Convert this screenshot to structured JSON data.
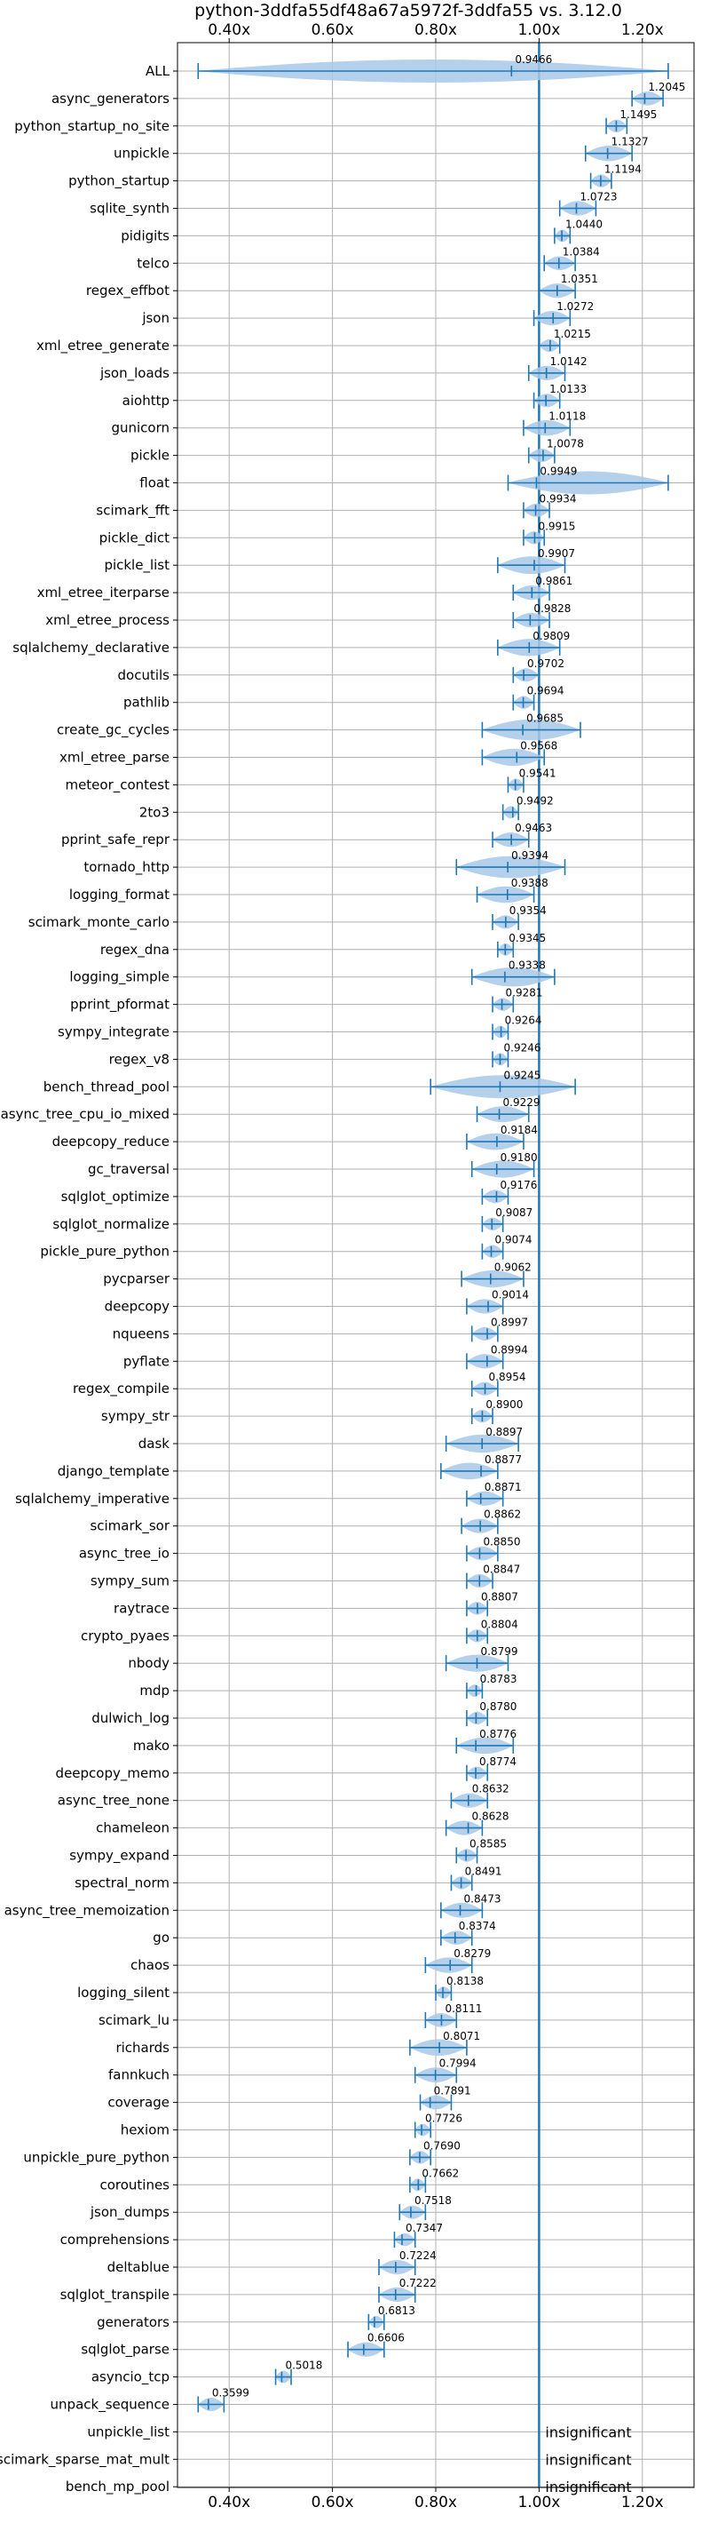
{
  "chart_data": {
    "type": "violin",
    "title": "python-3ddfa55df48a67a5972f-3ddfa55 vs. 3.12.0",
    "xlabel": "",
    "ylabel": "",
    "xlim": [
      0.3,
      1.3
    ],
    "x_ticks": [
      0.4,
      0.6,
      0.8,
      1.0,
      1.2
    ],
    "x_tick_labels": [
      "0.40x",
      "0.60x",
      "0.80x",
      "1.00x",
      "1.20x"
    ],
    "reference_line": 1.0,
    "grid": true,
    "colors": {
      "violin": "#a8c8e8",
      "line": "#1f77b4"
    },
    "insignificant_text": "insignificant",
    "benchmarks": [
      {
        "name": "ALL",
        "value": 0.9466,
        "label": "0.9466",
        "min": 0.34,
        "max": 1.25
      },
      {
        "name": "async_generators",
        "value": 1.2045,
        "label": "1.2045",
        "min": 1.18,
        "max": 1.24
      },
      {
        "name": "python_startup_no_site",
        "value": 1.1495,
        "label": "1.1495",
        "min": 1.13,
        "max": 1.17
      },
      {
        "name": "unpickle",
        "value": 1.1327,
        "label": "1.1327",
        "min": 1.09,
        "max": 1.18
      },
      {
        "name": "python_startup",
        "value": 1.1194,
        "label": "1.1194",
        "min": 1.1,
        "max": 1.14
      },
      {
        "name": "sqlite_synth",
        "value": 1.0723,
        "label": "1.0723",
        "min": 1.04,
        "max": 1.11
      },
      {
        "name": "pidigits",
        "value": 1.044,
        "label": "1.0440",
        "min": 1.03,
        "max": 1.06
      },
      {
        "name": "telco",
        "value": 1.0384,
        "label": "1.0384",
        "min": 1.01,
        "max": 1.07
      },
      {
        "name": "regex_effbot",
        "value": 1.0351,
        "label": "1.0351",
        "min": 1.0,
        "max": 1.07
      },
      {
        "name": "json",
        "value": 1.0272,
        "label": "1.0272",
        "min": 0.99,
        "max": 1.06
      },
      {
        "name": "xml_etree_generate",
        "value": 1.0215,
        "label": "1.0215",
        "min": 1.0,
        "max": 1.04
      },
      {
        "name": "json_loads",
        "value": 1.0142,
        "label": "1.0142",
        "min": 0.98,
        "max": 1.05
      },
      {
        "name": "aiohttp",
        "value": 1.0133,
        "label": "1.0133",
        "min": 0.99,
        "max": 1.04
      },
      {
        "name": "gunicorn",
        "value": 1.0118,
        "label": "1.0118",
        "min": 0.97,
        "max": 1.06
      },
      {
        "name": "pickle",
        "value": 1.0078,
        "label": "1.0078",
        "min": 0.98,
        "max": 1.03
      },
      {
        "name": "float",
        "value": 0.9949,
        "label": "0.9949",
        "min": 0.94,
        "max": 1.25
      },
      {
        "name": "scimark_fft",
        "value": 0.9934,
        "label": "0.9934",
        "min": 0.97,
        "max": 1.02
      },
      {
        "name": "pickle_dict",
        "value": 0.9915,
        "label": "0.9915",
        "min": 0.97,
        "max": 1.01
      },
      {
        "name": "pickle_list",
        "value": 0.9907,
        "label": "0.9907",
        "min": 0.92,
        "max": 1.05
      },
      {
        "name": "xml_etree_iterparse",
        "value": 0.9861,
        "label": "0.9861",
        "min": 0.95,
        "max": 1.02
      },
      {
        "name": "xml_etree_process",
        "value": 0.9828,
        "label": "0.9828",
        "min": 0.95,
        "max": 1.02
      },
      {
        "name": "sqlalchemy_declarative",
        "value": 0.9809,
        "label": "0.9809",
        "min": 0.92,
        "max": 1.04
      },
      {
        "name": "docutils",
        "value": 0.9702,
        "label": "0.9702",
        "min": 0.95,
        "max": 1.0
      },
      {
        "name": "pathlib",
        "value": 0.9694,
        "label": "0.9694",
        "min": 0.95,
        "max": 0.99
      },
      {
        "name": "create_gc_cycles",
        "value": 0.9685,
        "label": "0.9685",
        "min": 0.89,
        "max": 1.08
      },
      {
        "name": "xml_etree_parse",
        "value": 0.9568,
        "label": "0.9568",
        "min": 0.89,
        "max": 1.01
      },
      {
        "name": "meteor_contest",
        "value": 0.9541,
        "label": "0.9541",
        "min": 0.94,
        "max": 0.97
      },
      {
        "name": "2to3",
        "value": 0.9492,
        "label": "0.9492",
        "min": 0.93,
        "max": 0.96
      },
      {
        "name": "pprint_safe_repr",
        "value": 0.9463,
        "label": "0.9463",
        "min": 0.91,
        "max": 0.98
      },
      {
        "name": "tornado_http",
        "value": 0.9394,
        "label": "0.9394",
        "min": 0.84,
        "max": 1.05
      },
      {
        "name": "logging_format",
        "value": 0.9388,
        "label": "0.9388",
        "min": 0.88,
        "max": 0.99
      },
      {
        "name": "scimark_monte_carlo",
        "value": 0.9354,
        "label": "0.9354",
        "min": 0.91,
        "max": 0.96
      },
      {
        "name": "regex_dna",
        "value": 0.9345,
        "label": "0.9345",
        "min": 0.92,
        "max": 0.95
      },
      {
        "name": "logging_simple",
        "value": 0.9338,
        "label": "0.9338",
        "min": 0.87,
        "max": 1.03
      },
      {
        "name": "pprint_pformat",
        "value": 0.9281,
        "label": "0.9281",
        "min": 0.91,
        "max": 0.95
      },
      {
        "name": "sympy_integrate",
        "value": 0.9264,
        "label": "0.9264",
        "min": 0.91,
        "max": 0.94
      },
      {
        "name": "regex_v8",
        "value": 0.9246,
        "label": "0.9246",
        "min": 0.91,
        "max": 0.94
      },
      {
        "name": "bench_thread_pool",
        "value": 0.9245,
        "label": "0.9245",
        "min": 0.79,
        "max": 1.07
      },
      {
        "name": "async_tree_cpu_io_mixed",
        "value": 0.9229,
        "label": "0.9229",
        "min": 0.88,
        "max": 0.98
      },
      {
        "name": "deepcopy_reduce",
        "value": 0.9184,
        "label": "0.9184",
        "min": 0.86,
        "max": 0.97
      },
      {
        "name": "gc_traversal",
        "value": 0.918,
        "label": "0.9180",
        "min": 0.87,
        "max": 0.99
      },
      {
        "name": "sqlglot_optimize",
        "value": 0.9176,
        "label": "0.9176",
        "min": 0.89,
        "max": 0.94
      },
      {
        "name": "sqlglot_normalize",
        "value": 0.9087,
        "label": "0.9087",
        "min": 0.89,
        "max": 0.93
      },
      {
        "name": "pickle_pure_python",
        "value": 0.9074,
        "label": "0.9074",
        "min": 0.89,
        "max": 0.93
      },
      {
        "name": "pycparser",
        "value": 0.9062,
        "label": "0.9062",
        "min": 0.85,
        "max": 0.97
      },
      {
        "name": "deepcopy",
        "value": 0.9014,
        "label": "0.9014",
        "min": 0.86,
        "max": 0.93
      },
      {
        "name": "nqueens",
        "value": 0.8997,
        "label": "0.8997",
        "min": 0.87,
        "max": 0.92
      },
      {
        "name": "pyflate",
        "value": 0.8994,
        "label": "0.8994",
        "min": 0.86,
        "max": 0.93
      },
      {
        "name": "regex_compile",
        "value": 0.8954,
        "label": "0.8954",
        "min": 0.87,
        "max": 0.92
      },
      {
        "name": "sympy_str",
        "value": 0.89,
        "label": "0.8900",
        "min": 0.87,
        "max": 0.91
      },
      {
        "name": "dask",
        "value": 0.8897,
        "label": "0.8897",
        "min": 0.82,
        "max": 0.96
      },
      {
        "name": "django_template",
        "value": 0.8877,
        "label": "0.8877",
        "min": 0.81,
        "max": 0.92
      },
      {
        "name": "sqlalchemy_imperative",
        "value": 0.8871,
        "label": "0.8871",
        "min": 0.86,
        "max": 0.93
      },
      {
        "name": "scimark_sor",
        "value": 0.8862,
        "label": "0.8862",
        "min": 0.85,
        "max": 0.92
      },
      {
        "name": "async_tree_io",
        "value": 0.885,
        "label": "0.8850",
        "min": 0.86,
        "max": 0.92
      },
      {
        "name": "sympy_sum",
        "value": 0.8847,
        "label": "0.8847",
        "min": 0.86,
        "max": 0.91
      },
      {
        "name": "raytrace",
        "value": 0.8807,
        "label": "0.8807",
        "min": 0.86,
        "max": 0.9
      },
      {
        "name": "crypto_pyaes",
        "value": 0.8804,
        "label": "0.8804",
        "min": 0.86,
        "max": 0.9
      },
      {
        "name": "nbody",
        "value": 0.8799,
        "label": "0.8799",
        "min": 0.82,
        "max": 0.94
      },
      {
        "name": "mdp",
        "value": 0.8783,
        "label": "0.8783",
        "min": 0.86,
        "max": 0.89
      },
      {
        "name": "dulwich_log",
        "value": 0.878,
        "label": "0.8780",
        "min": 0.86,
        "max": 0.9
      },
      {
        "name": "mako",
        "value": 0.8776,
        "label": "0.8776",
        "min": 0.84,
        "max": 0.95
      },
      {
        "name": "deepcopy_memo",
        "value": 0.8774,
        "label": "0.8774",
        "min": 0.86,
        "max": 0.9
      },
      {
        "name": "async_tree_none",
        "value": 0.8632,
        "label": "0.8632",
        "min": 0.83,
        "max": 0.9
      },
      {
        "name": "chameleon",
        "value": 0.8628,
        "label": "0.8628",
        "min": 0.82,
        "max": 0.89
      },
      {
        "name": "sympy_expand",
        "value": 0.8585,
        "label": "0.8585",
        "min": 0.84,
        "max": 0.88
      },
      {
        "name": "spectral_norm",
        "value": 0.8491,
        "label": "0.8491",
        "min": 0.83,
        "max": 0.87
      },
      {
        "name": "async_tree_memoization",
        "value": 0.8473,
        "label": "0.8473",
        "min": 0.81,
        "max": 0.89
      },
      {
        "name": "go",
        "value": 0.8374,
        "label": "0.8374",
        "min": 0.81,
        "max": 0.87
      },
      {
        "name": "chaos",
        "value": 0.8279,
        "label": "0.8279",
        "min": 0.78,
        "max": 0.87
      },
      {
        "name": "logging_silent",
        "value": 0.8138,
        "label": "0.8138",
        "min": 0.8,
        "max": 0.83
      },
      {
        "name": "scimark_lu",
        "value": 0.8111,
        "label": "0.8111",
        "min": 0.78,
        "max": 0.84
      },
      {
        "name": "richards",
        "value": 0.8071,
        "label": "0.8071",
        "min": 0.75,
        "max": 0.86
      },
      {
        "name": "fannkuch",
        "value": 0.7994,
        "label": "0.7994",
        "min": 0.76,
        "max": 0.84
      },
      {
        "name": "coverage",
        "value": 0.7891,
        "label": "0.7891",
        "min": 0.77,
        "max": 0.83
      },
      {
        "name": "hexiom",
        "value": 0.7726,
        "label": "0.7726",
        "min": 0.76,
        "max": 0.79
      },
      {
        "name": "unpickle_pure_python",
        "value": 0.769,
        "label": "0.7690",
        "min": 0.75,
        "max": 0.79
      },
      {
        "name": "coroutines",
        "value": 0.7662,
        "label": "0.7662",
        "min": 0.75,
        "max": 0.78
      },
      {
        "name": "json_dumps",
        "value": 0.7518,
        "label": "0.7518",
        "min": 0.73,
        "max": 0.78
      },
      {
        "name": "comprehensions",
        "value": 0.7347,
        "label": "0.7347",
        "min": 0.72,
        "max": 0.76
      },
      {
        "name": "deltablue",
        "value": 0.7224,
        "label": "0.7224",
        "min": 0.69,
        "max": 0.76
      },
      {
        "name": "sqlglot_transpile",
        "value": 0.7222,
        "label": "0.7222",
        "min": 0.69,
        "max": 0.76
      },
      {
        "name": "generators",
        "value": 0.6813,
        "label": "0.6813",
        "min": 0.67,
        "max": 0.7
      },
      {
        "name": "sqlglot_parse",
        "value": 0.6606,
        "label": "0.6606",
        "min": 0.63,
        "max": 0.7
      },
      {
        "name": "asyncio_tcp",
        "value": 0.5018,
        "label": "0.5018",
        "min": 0.49,
        "max": 0.52
      },
      {
        "name": "unpack_sequence",
        "value": 0.3599,
        "label": "0.3599",
        "min": 0.34,
        "max": 0.39
      },
      {
        "name": "unpickle_list",
        "value": null,
        "label": "",
        "min": null,
        "max": null,
        "insignificant": true
      },
      {
        "name": "scimark_sparse_mat_mult",
        "value": null,
        "label": "",
        "min": null,
        "max": null,
        "insignificant": true
      },
      {
        "name": "bench_mp_pool",
        "value": null,
        "label": "",
        "min": null,
        "max": null,
        "insignificant": true
      }
    ]
  }
}
